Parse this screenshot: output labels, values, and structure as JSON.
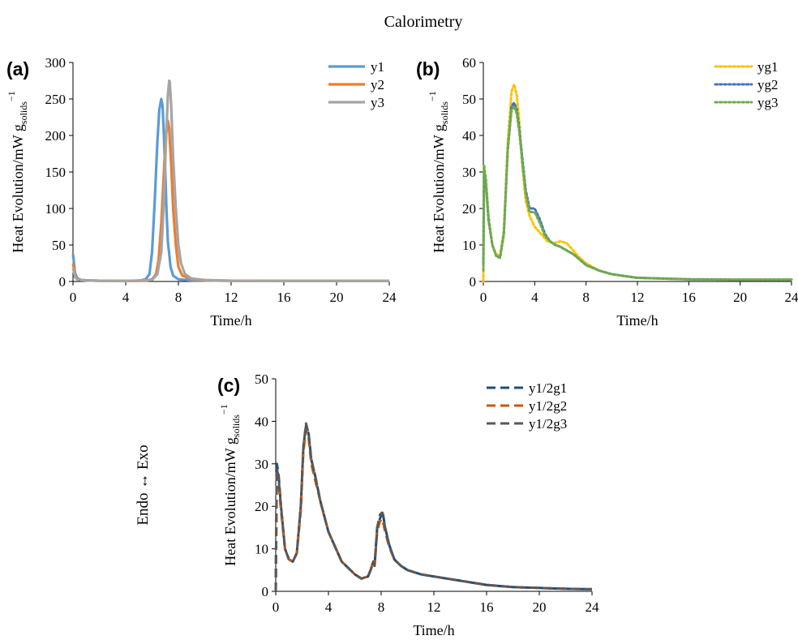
{
  "figure": {
    "title": "Calorimetry",
    "side_label": "Endo ↔ Exo"
  },
  "chart_data": [
    {
      "panel": "(a)",
      "type": "line",
      "xlabel": "Time/h",
      "ylabel_main": "Heat Evolution/mW g",
      "ylabel_sub": "solids",
      "ylabel_sup": "−1",
      "xlim": [
        0,
        24
      ],
      "ylim": [
        0,
        300
      ],
      "xticks": [
        0,
        4,
        8,
        12,
        16,
        20,
        24
      ],
      "yticks": [
        0,
        50,
        100,
        150,
        200,
        250,
        300
      ],
      "grid": false,
      "legend": "top-right",
      "series": [
        {
          "name": "y1",
          "color": "#5B9BD5",
          "style": "solid",
          "x": [
            0,
            0.05,
            0.15,
            0.3,
            0.6,
            1,
            2,
            3,
            4,
            5,
            5.5,
            5.8,
            6.0,
            6.2,
            6.4,
            6.55,
            6.7,
            6.8,
            6.9,
            7.0,
            7.1,
            7.2,
            7.4,
            7.6,
            8,
            9,
            12,
            16,
            20,
            24
          ],
          "y": [
            37,
            30,
            12,
            5,
            2,
            1.5,
            1,
            0.8,
            0.8,
            1,
            3,
            10,
            40,
            110,
            190,
            235,
            250,
            240,
            200,
            150,
            95,
            55,
            20,
            8,
            3,
            1.5,
            1,
            0.8,
            0.8,
            0.8
          ]
        },
        {
          "name": "y2",
          "color": "#ED7D31",
          "style": "solid",
          "x": [
            0,
            0.05,
            0.15,
            0.3,
            0.6,
            1,
            2,
            4,
            5.5,
            6.0,
            6.3,
            6.5,
            6.7,
            6.9,
            7.05,
            7.2,
            7.3,
            7.45,
            7.6,
            7.8,
            8.0,
            8.3,
            9,
            10,
            12,
            16,
            20,
            24
          ],
          "y": [
            24,
            20,
            8,
            4,
            2,
            1.5,
            1,
            0.8,
            1,
            3,
            10,
            30,
            80,
            150,
            200,
            220,
            210,
            160,
            100,
            50,
            20,
            8,
            3,
            1.5,
            1,
            0.8,
            0.8,
            0.8
          ]
        },
        {
          "name": "y3",
          "color": "#A5A5A5",
          "style": "solid",
          "x": [
            0,
            0.05,
            0.15,
            0.3,
            0.6,
            1,
            2,
            4,
            6.0,
            6.4,
            6.7,
            6.9,
            7.05,
            7.2,
            7.3,
            7.35,
            7.45,
            7.6,
            7.8,
            8.0,
            8.2,
            8.5,
            9,
            10,
            12,
            16,
            20,
            24
          ],
          "y": [
            18,
            15,
            6,
            3,
            2,
            1.5,
            1,
            0.8,
            2,
            10,
            40,
            110,
            190,
            255,
            275,
            273,
            240,
            170,
            100,
            50,
            25,
            10,
            4,
            2,
            1,
            0.8,
            0.8,
            0.8
          ]
        }
      ]
    },
    {
      "panel": "(b)",
      "type": "line",
      "xlabel": "Time/h",
      "ylabel_main": "Heat Evolution/mW g",
      "ylabel_sub": "solids",
      "ylabel_sup": "−1",
      "xlim": [
        0,
        24
      ],
      "ylim": [
        0,
        60
      ],
      "xticks": [
        0,
        4,
        8,
        12,
        16,
        20,
        24
      ],
      "yticks": [
        0,
        10,
        20,
        30,
        40,
        50,
        60
      ],
      "grid": false,
      "legend": "top-right",
      "series": [
        {
          "name": "yg1",
          "color": "#FFC000",
          "style": "dotted",
          "x": [
            0,
            0.05,
            0.2,
            0.4,
            0.7,
            1.0,
            1.3,
            1.6,
            1.9,
            2.2,
            2.4,
            2.6,
            2.8,
            3.0,
            3.3,
            3.6,
            4.0,
            4.5,
            5.0,
            5.5,
            6.0,
            6.5,
            7.0,
            7.5,
            8.0,
            9,
            10,
            11,
            12,
            14,
            16,
            20,
            24
          ],
          "y": [
            0,
            28,
            26,
            17,
            10,
            7.5,
            7,
            14,
            38,
            52,
            54,
            51,
            44,
            33,
            22,
            18,
            15,
            13,
            11,
            10.5,
            11,
            10.5,
            8.5,
            6.5,
            5,
            3,
            2,
            1.5,
            1,
            0.8,
            0.6,
            0.5,
            0.5
          ]
        },
        {
          "name": "yg2",
          "color": "#4472C4",
          "style": "dotted",
          "x": [
            0,
            0.05,
            0.2,
            0.4,
            0.7,
            1.0,
            1.3,
            1.6,
            1.9,
            2.2,
            2.4,
            2.6,
            2.8,
            3.0,
            3.3,
            3.6,
            4.0,
            4.4,
            4.8,
            5.2,
            5.6,
            6.0,
            6.5,
            7.0,
            7.5,
            8.0,
            9,
            10,
            11,
            12,
            14,
            16,
            20,
            24
          ],
          "y": [
            5,
            30,
            27,
            17,
            10,
            7,
            6.5,
            13,
            36,
            48,
            49,
            47,
            42,
            35,
            25,
            20,
            20,
            17,
            13,
            11,
            10,
            9.5,
            8.5,
            7.5,
            6,
            4.5,
            3,
            2,
            1.5,
            1,
            0.8,
            0.6,
            0.5,
            0.5
          ]
        },
        {
          "name": "yg3",
          "color": "#70AD47",
          "style": "dotted",
          "x": [
            0,
            0.05,
            0.2,
            0.4,
            0.7,
            1.0,
            1.3,
            1.6,
            1.9,
            2.2,
            2.4,
            2.6,
            2.8,
            3.0,
            3.3,
            3.6,
            4.0,
            4.4,
            4.8,
            5.2,
            5.6,
            6.0,
            6.5,
            7.0,
            7.5,
            8.0,
            9,
            10,
            11,
            12,
            14,
            16,
            20,
            24
          ],
          "y": [
            3,
            32,
            28,
            18,
            10,
            7,
            6.5,
            13,
            36,
            47,
            48,
            46,
            41,
            34,
            24,
            19,
            19,
            16,
            12.5,
            11,
            10,
            9.5,
            8.5,
            7.5,
            6,
            4.5,
            3,
            2,
            1.5,
            1,
            0.8,
            0.6,
            0.5,
            0.5
          ]
        }
      ]
    },
    {
      "panel": "(c)",
      "type": "line",
      "xlabel": "Time/h",
      "ylabel_main": "Heat Evolution/mW g",
      "ylabel_sub": "solids",
      "ylabel_sup": "−1",
      "xlim": [
        0,
        24
      ],
      "ylim": [
        0,
        50
      ],
      "xticks": [
        0,
        4,
        8,
        12,
        16,
        20,
        24
      ],
      "yticks": [
        0,
        10,
        20,
        30,
        40,
        50
      ],
      "grid": false,
      "legend": "top-right",
      "series": [
        {
          "name": "y1/2g1",
          "color": "#1F4E79",
          "style": "dashed",
          "x": [
            0,
            0.08,
            0.2,
            0.4,
            0.7,
            1.0,
            1.3,
            1.6,
            1.9,
            2.1,
            2.3,
            2.5,
            2.7,
            3.0,
            3.4,
            4.0,
            5.0,
            6.0,
            6.5,
            7.0,
            7.2,
            7.4,
            7.5,
            7.7,
            7.9,
            8.1,
            8.3,
            8.6,
            9.0,
            9.5,
            10,
            11,
            12,
            13,
            14,
            16,
            18,
            20,
            22,
            24
          ],
          "y": [
            0,
            30,
            28,
            20,
            10,
            7.5,
            7,
            9,
            20,
            34,
            39,
            37,
            31,
            27,
            21,
            14,
            7,
            4,
            3,
            3.5,
            5,
            7,
            6,
            15,
            17,
            19,
            15,
            11,
            7.5,
            6,
            5,
            4,
            3.5,
            3,
            2.5,
            1.5,
            1,
            0.8,
            0.6,
            0.5
          ]
        },
        {
          "name": "y1/2g2",
          "color": "#C55A11",
          "style": "dashed",
          "x": [
            0,
            0.08,
            0.2,
            0.4,
            0.7,
            1.0,
            1.3,
            1.6,
            1.9,
            2.1,
            2.3,
            2.5,
            2.7,
            3.0,
            3.4,
            4.0,
            5.0,
            6.0,
            6.5,
            7.0,
            7.2,
            7.4,
            7.5,
            7.7,
            7.9,
            8.1,
            8.3,
            8.6,
            9.0,
            9.5,
            10,
            11,
            12,
            13,
            14,
            16,
            18,
            20,
            22,
            24
          ],
          "y": [
            0,
            27,
            26,
            19,
            10,
            7.5,
            7,
            9,
            19,
            33,
            38,
            36,
            30,
            26,
            21,
            14,
            7,
            4,
            3,
            3.5,
            5,
            7,
            6,
            14,
            16.5,
            17,
            14,
            10.5,
            7.5,
            6,
            5,
            4,
            3.5,
            3,
            2.5,
            1.5,
            1,
            0.8,
            0.6,
            0.5
          ]
        },
        {
          "name": "y1/2g3",
          "color": "#595959",
          "style": "dashed",
          "x": [
            0,
            0.08,
            0.2,
            0.4,
            0.7,
            1.0,
            1.3,
            1.6,
            1.9,
            2.1,
            2.3,
            2.5,
            2.7,
            3.0,
            3.4,
            4.0,
            5.0,
            6.0,
            6.5,
            7.0,
            7.2,
            7.4,
            7.5,
            7.7,
            7.9,
            8.1,
            8.3,
            8.6,
            9.0,
            9.5,
            10,
            11,
            12,
            13,
            14,
            16,
            18,
            20,
            22,
            24
          ],
          "y": [
            0,
            29,
            27,
            20,
            10,
            7.5,
            7,
            9,
            20,
            34,
            39.5,
            37,
            31,
            27,
            21,
            14,
            7,
            4,
            3,
            3.5,
            5,
            7,
            6,
            15,
            18,
            18.5,
            15,
            11,
            7.5,
            6,
            5,
            4,
            3.5,
            3,
            2.5,
            1.5,
            1,
            0.8,
            0.6,
            0.5
          ]
        }
      ]
    }
  ]
}
